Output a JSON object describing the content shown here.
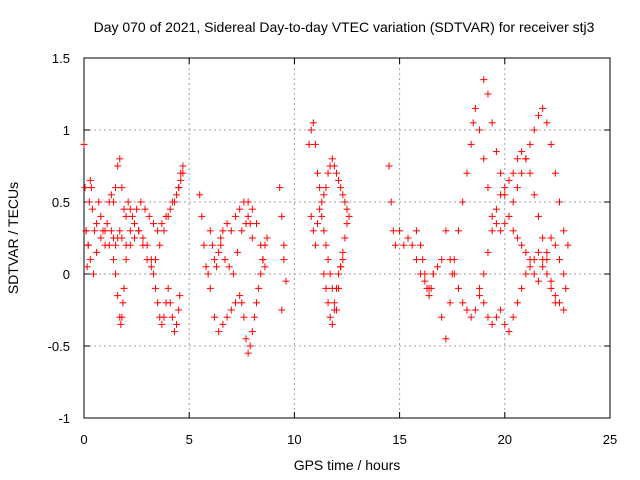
{
  "chart_data": {
    "type": "scatter",
    "title": "Day 070 of 2021, Sidereal Day-to-day VTEC variation (SDTVAR) for receiver stj3",
    "xlabel": "GPS time / hours",
    "ylabel": "SDTVAR / TECUs",
    "xlim": [
      0,
      25
    ],
    "ylim": [
      -1,
      1.5
    ],
    "xticks": [
      0,
      5,
      10,
      15,
      20,
      25
    ],
    "xtick_labels": [
      "0",
      "5",
      "10",
      "15",
      "20",
      "25"
    ],
    "yticks": [
      -1,
      -0.5,
      0,
      0.5,
      1,
      1.5
    ],
    "ytick_labels": [
      "-1",
      "-0.5",
      "0",
      "0.5",
      "1",
      "1.5"
    ],
    "grid": true,
    "marker": "+",
    "color": "#ff0000",
    "series": [
      {
        "name": "SDTVAR",
        "x": [
          0.0,
          0.05,
          0.1,
          0.15,
          0.2,
          0.25,
          0.3,
          0.35,
          0.4,
          0.5,
          0.6,
          0.7,
          0.8,
          0.9,
          1.0,
          1.1,
          1.2,
          1.3,
          1.4,
          1.5,
          1.6,
          1.7,
          1.8,
          1.9,
          2.0,
          2.1,
          2.2,
          2.3,
          2.5,
          2.7,
          2.9,
          3.1,
          3.3,
          3.5,
          3.7,
          3.9,
          4.1,
          4.3,
          4.5,
          4.6,
          4.7,
          0.1,
          0.2,
          0.3,
          0.45,
          0.6,
          0.8,
          1.0,
          1.2,
          1.4,
          1.5,
          1.6,
          1.7,
          1.75,
          1.8,
          1.85,
          1.9,
          2.0,
          2.2,
          2.4,
          2.6,
          2.8,
          3.0,
          3.2,
          3.4,
          3.6,
          3.8,
          4.0,
          4.2,
          4.4,
          4.5,
          4.6,
          4.7,
          1.3,
          1.4,
          1.5,
          1.6,
          1.7,
          1.8,
          2.0,
          2.2,
          2.4,
          2.6,
          2.8,
          3.0,
          3.2,
          3.3,
          3.4,
          3.5,
          3.6,
          3.7,
          3.8,
          3.9,
          4.0,
          4.1,
          4.2,
          4.3,
          4.4,
          4.5,
          4.55,
          5.5,
          5.6,
          5.7,
          5.8,
          5.9,
          6.0,
          6.2,
          6.4,
          6.6,
          6.8,
          7.0,
          7.2,
          7.4,
          7.5,
          7.6,
          7.7,
          7.8,
          7.9,
          8.0,
          8.1,
          8.2,
          8.3,
          8.4,
          8.5,
          8.6,
          8.7,
          6.0,
          6.1,
          6.2,
          6.3,
          6.4,
          6.5,
          6.6,
          6.8,
          7.0,
          7.2,
          7.4,
          7.6,
          7.8,
          8.0,
          8.2,
          8.4,
          8.5,
          8.6,
          6.5,
          6.7,
          6.9,
          7.1,
          7.3,
          7.5,
          7.7,
          7.8,
          7.9,
          8.0,
          9.3,
          9.4,
          9.5,
          9.6,
          9.4,
          9.5,
          10.7,
          10.8,
          10.9,
          11.0,
          11.1,
          11.2,
          11.3,
          11.4,
          11.5,
          11.6,
          11.7,
          11.8,
          11.9,
          12.0,
          12.1,
          12.2,
          12.3,
          12.4,
          12.5,
          12.6,
          10.8,
          10.9,
          11.0,
          11.1,
          11.2,
          11.3,
          11.4,
          11.5,
          11.6,
          11.7,
          11.8,
          11.9,
          12.0,
          12.1,
          12.2,
          12.3,
          12.4,
          12.5,
          11.4,
          11.5,
          11.6,
          11.7,
          11.8,
          11.9,
          12.0,
          12.1,
          12.2,
          12.3,
          14.5,
          14.6,
          14.7,
          14.8,
          15.0,
          15.2,
          15.4,
          15.6,
          15.8,
          16.0,
          16.2,
          16.4,
          16.6,
          16.8,
          17.0,
          15.8,
          16.0,
          16.1,
          16.2,
          16.3,
          16.4,
          16.5,
          16.6,
          17.0,
          17.2,
          17.4,
          17.5,
          17.6,
          17.8,
          18.0,
          18.2,
          18.4,
          18.5,
          18.6,
          18.8,
          19.0,
          19.2,
          19.4,
          19.6,
          19.8,
          20.0,
          20.2,
          20.4,
          20.6,
          20.8,
          21.0,
          21.2,
          21.4,
          21.6,
          21.8,
          22.0,
          22.2,
          22.4,
          22.6,
          22.8,
          23.0,
          17.2,
          17.4,
          17.6,
          17.8,
          18.0,
          18.2,
          18.4,
          18.6,
          18.8,
          19.0,
          19.2,
          19.4,
          19.6,
          19.8,
          20.0,
          20.2,
          20.4,
          20.6,
          20.8,
          21.0,
          21.2,
          21.4,
          21.6,
          21.8,
          22.0,
          22.2,
          22.4,
          22.6,
          22.8,
          18.8,
          19.0,
          19.2,
          19.4,
          19.6,
          19.8,
          20.0,
          20.2,
          20.4,
          20.6,
          20.8,
          21.0,
          21.2,
          21.4,
          21.6,
          21.8,
          22.0,
          22.2,
          22.4,
          19.0,
          19.2,
          19.4,
          19.6,
          19.8,
          20.0,
          20.2,
          20.4,
          20.6,
          20.8,
          21.0,
          21.2,
          21.4,
          21.6,
          21.8,
          22.0,
          22.2,
          22.4,
          22.6,
          22.8,
          22.9
        ],
        "y": [
          0.9,
          0.6,
          0.3,
          0.05,
          0.2,
          0.5,
          0.65,
          0.6,
          0.45,
          0.3,
          0.35,
          0.5,
          0.4,
          0.3,
          0.2,
          0.35,
          0.5,
          0.55,
          0.5,
          0.6,
          0.75,
          0.8,
          0.6,
          0.45,
          0.4,
          0.5,
          0.45,
          0.4,
          0.45,
          0.5,
          0.45,
          0.4,
          0.35,
          0.3,
          0.35,
          0.4,
          0.45,
          0.5,
          0.6,
          0.7,
          0.75,
          0.3,
          0.2,
          0.1,
          0.0,
          0.15,
          0.25,
          0.3,
          0.2,
          0.1,
          0.0,
          -0.15,
          -0.3,
          -0.35,
          -0.3,
          -0.2,
          -0.1,
          0.1,
          0.2,
          0.25,
          0.3,
          0.2,
          0.1,
          0.05,
          0.1,
          0.2,
          0.3,
          0.4,
          0.5,
          0.55,
          0.6,
          0.65,
          0.7,
          0.3,
          0.25,
          0.2,
          0.25,
          0.3,
          0.25,
          0.2,
          0.3,
          0.35,
          0.3,
          0.25,
          0.2,
          0.1,
          0.0,
          -0.1,
          -0.2,
          -0.3,
          -0.35,
          -0.3,
          -0.2,
          -0.1,
          -0.2,
          -0.3,
          -0.4,
          -0.35,
          -0.25,
          -0.15,
          0.55,
          0.4,
          0.2,
          0.05,
          0.0,
          -0.1,
          -0.3,
          -0.4,
          -0.35,
          -0.3,
          -0.25,
          -0.2,
          -0.15,
          -0.2,
          -0.3,
          -0.45,
          -0.55,
          -0.5,
          -0.4,
          -0.3,
          -0.2,
          -0.1,
          0.0,
          0.1,
          0.2,
          0.25,
          0.3,
          0.2,
          0.1,
          0.05,
          0.15,
          0.25,
          0.3,
          0.35,
          0.3,
          0.4,
          0.45,
          0.5,
          0.5,
          0.45,
          0.35,
          0.2,
          0.1,
          0.05,
          0.2,
          0.1,
          0.05,
          0.0,
          0.15,
          0.3,
          0.35,
          0.4,
          0.35,
          0.25,
          0.6,
          0.4,
          0.1,
          -0.05,
          -0.25,
          0.2,
          0.9,
          1.0,
          1.05,
          0.9,
          0.7,
          0.6,
          0.5,
          0.55,
          0.6,
          0.7,
          0.75,
          0.8,
          0.75,
          0.7,
          0.65,
          0.6,
          0.55,
          0.5,
          0.45,
          0.4,
          0.4,
          0.3,
          0.2,
          0.35,
          0.45,
          0.4,
          0.3,
          0.2,
          0.1,
          0.0,
          -0.1,
          -0.2,
          -0.25,
          -0.1,
          0.05,
          0.15,
          0.25,
          0.35,
          0.0,
          -0.1,
          -0.2,
          -0.3,
          -0.35,
          -0.25,
          -0.1,
          0.0,
          0.05,
          0.1,
          0.75,
          0.5,
          0.3,
          0.2,
          0.3,
          0.2,
          0.25,
          0.2,
          0.1,
          0.0,
          -0.05,
          -0.1,
          0.0,
          0.05,
          0.1,
          0.3,
          0.2,
          0.1,
          0.0,
          -0.1,
          -0.15,
          -0.1,
          0.0,
          -0.3,
          -0.45,
          -0.2,
          0.0,
          0.1,
          0.3,
          0.5,
          0.7,
          0.9,
          1.05,
          1.15,
          1.0,
          0.8,
          0.6,
          0.4,
          0.35,
          0.3,
          0.35,
          0.4,
          0.5,
          0.6,
          0.7,
          0.8,
          0.9,
          1.0,
          1.1,
          1.15,
          1.05,
          0.9,
          0.7,
          0.5,
          0.3,
          0.2,
          0.3,
          0.1,
          0.0,
          -0.1,
          -0.2,
          -0.25,
          -0.3,
          -0.25,
          -0.15,
          0.0,
          0.15,
          0.3,
          0.45,
          0.55,
          0.6,
          0.65,
          0.7,
          0.8,
          0.85,
          0.8,
          0.7,
          0.55,
          0.4,
          0.25,
          0.1,
          -0.05,
          -0.15,
          -0.2,
          -0.25,
          -0.1,
          -0.2,
          -0.3,
          -0.35,
          -0.3,
          -0.25,
          -0.35,
          -0.4,
          -0.3,
          -0.2,
          -0.1,
          0.0,
          0.05,
          0.1,
          0.15,
          0.1,
          0.0,
          -0.1,
          -0.2,
          1.35,
          1.25,
          1.05,
          0.85,
          0.7,
          0.55,
          0.4,
          0.3,
          0.25,
          0.2,
          0.15,
          0.1,
          0.0,
          -0.05,
          0.05,
          0.15,
          0.25,
          0.2,
          0.1,
          0.0,
          -0.1
        ]
      }
    ]
  }
}
